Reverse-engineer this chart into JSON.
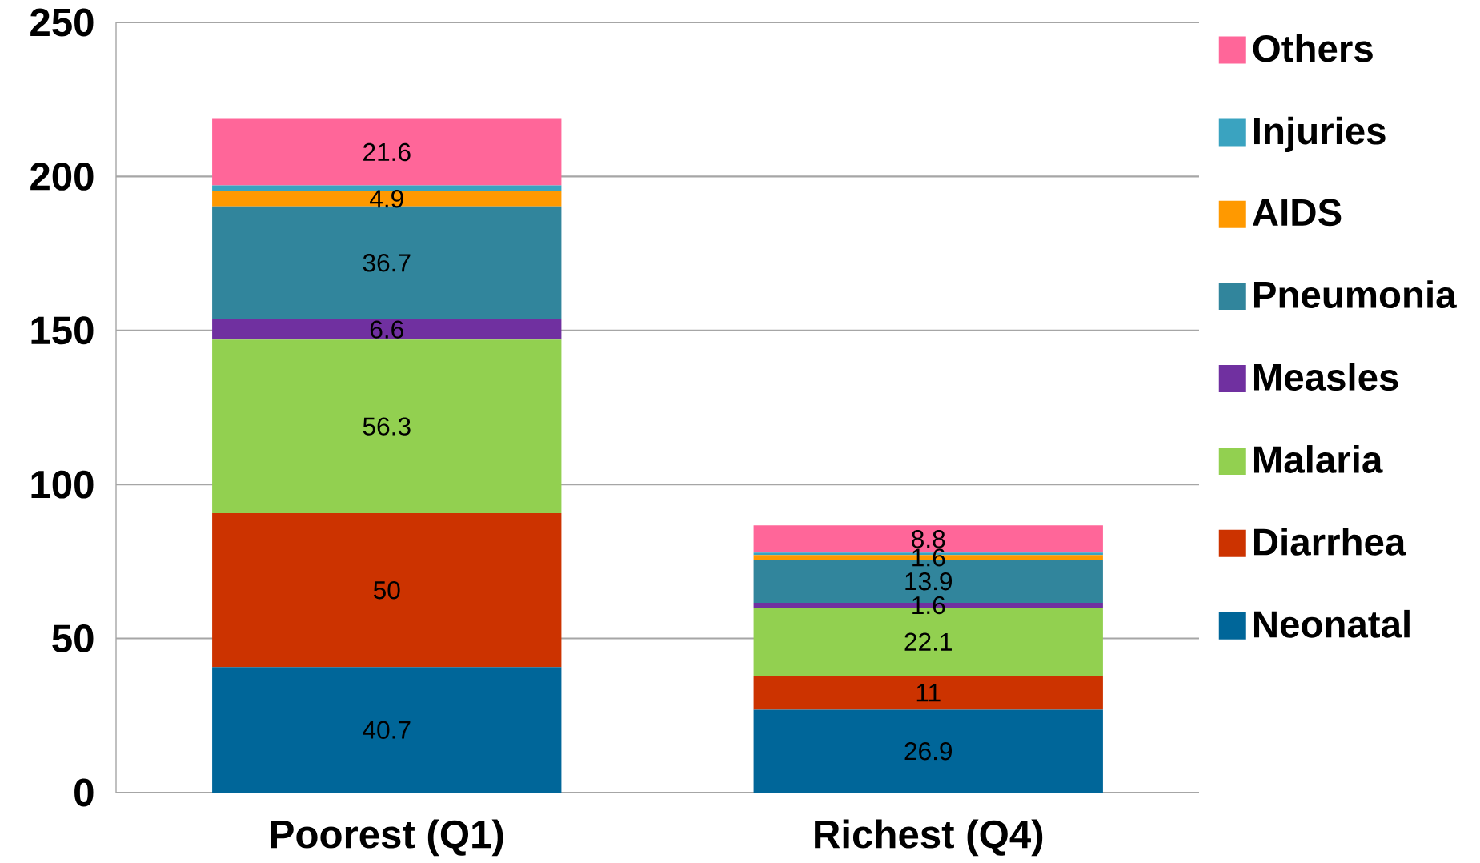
{
  "chart_data": {
    "type": "bar",
    "stacked": true,
    "categories": [
      "Poorest (Q1)",
      "Richest (Q4)"
    ],
    "series": [
      {
        "name": "Neonatal",
        "color": "#006699",
        "values": [
          40.7,
          26.9
        ],
        "value_labels": [
          "40.7",
          "26.9"
        ]
      },
      {
        "name": "Diarrhea",
        "color": "#cc3300",
        "values": [
          50,
          11
        ],
        "value_labels": [
          "50",
          "11"
        ]
      },
      {
        "name": "Malaria",
        "color": "#92d050",
        "values": [
          56.3,
          22.1
        ],
        "value_labels": [
          "56.3",
          "22.1"
        ]
      },
      {
        "name": "Measles",
        "color": "#7030a0",
        "values": [
          6.6,
          1.6
        ],
        "value_labels": [
          "6.6",
          "1.6"
        ]
      },
      {
        "name": "Pneumonia",
        "color": "#31859c",
        "values": [
          36.7,
          13.9
        ],
        "value_labels": [
          "36.7",
          "13.9"
        ]
      },
      {
        "name": "AIDS",
        "color": "#ff9900",
        "values": [
          4.9,
          1.6
        ],
        "value_labels": [
          "4.9",
          "1.6"
        ]
      },
      {
        "name": "Injuries",
        "color": "#3aa3c0",
        "values": [
          1.9,
          0.8
        ],
        "value_labels": [
          null,
          null
        ]
      },
      {
        "name": "Others",
        "color": "#ff6699",
        "values": [
          21.6,
          8.8
        ],
        "value_labels": [
          "21.6",
          "8.8"
        ]
      }
    ],
    "ylim": [
      0,
      250
    ],
    "yticks": [
      0,
      50,
      100,
      150,
      200,
      250
    ],
    "grid": "y",
    "legend": "right"
  }
}
